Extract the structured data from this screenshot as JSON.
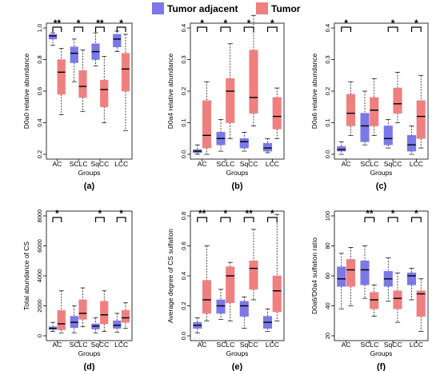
{
  "legend": {
    "items": [
      {
        "label": "Tumor adjacent",
        "color": "#7b78e8"
      },
      {
        "label": "Tumor",
        "color": "#f08080"
      }
    ]
  },
  "colors": {
    "adjacent": "#7b78e8",
    "tumor": "#f08080"
  },
  "chart_data": [
    {
      "type": "box",
      "panel_label": "(a)",
      "ylabel": "D0a0 relative abundance",
      "xlabel": "Groups",
      "categories": [
        "AC",
        "SCLC",
        "SqCC",
        "LCC"
      ],
      "ylim": [
        0.2,
        1.0
      ],
      "yticks": [
        0.2,
        0.4,
        0.6,
        0.8,
        1.0
      ],
      "significance": [
        "**",
        "*",
        "**",
        "*"
      ],
      "series": [
        {
          "group": "Tumor adjacent",
          "boxes": [
            [
              0.89,
              0.93,
              0.95,
              0.96,
              0.97
            ],
            [
              0.66,
              0.78,
              0.84,
              0.88,
              0.93
            ],
            [
              0.76,
              0.8,
              0.85,
              0.9,
              0.97
            ],
            [
              0.85,
              0.88,
              0.93,
              0.96,
              0.98
            ]
          ]
        },
        {
          "group": "Tumor",
          "boxes": [
            [
              0.45,
              0.58,
              0.72,
              0.8,
              0.87
            ],
            [
              0.47,
              0.56,
              0.63,
              0.73,
              0.86
            ],
            [
              0.4,
              0.5,
              0.61,
              0.67,
              0.82
            ],
            [
              0.35,
              0.6,
              0.74,
              0.84,
              0.96
            ]
          ]
        }
      ]
    },
    {
      "type": "box",
      "panel_label": "(b)",
      "ylabel": "D0a4 relative abundance",
      "xlabel": "Groups",
      "categories": [
        "AC",
        "SCLC",
        "SqCC",
        "LCC"
      ],
      "ylim": [
        0.0,
        0.4
      ],
      "yticks": [
        0.0,
        0.1,
        0.2,
        0.3,
        0.4
      ],
      "significance": [
        "*",
        "*",
        "*",
        "*"
      ],
      "series": [
        {
          "group": "Tumor adjacent",
          "boxes": [
            [
              0.0,
              0.005,
              0.01,
              0.015,
              0.03
            ],
            [
              0.01,
              0.03,
              0.05,
              0.07,
              0.11
            ],
            [
              0.01,
              0.02,
              0.04,
              0.05,
              0.07
            ],
            [
              0.005,
              0.01,
              0.02,
              0.035,
              0.05
            ]
          ]
        },
        {
          "group": "Tumor",
          "boxes": [
            [
              0.0,
              0.02,
              0.06,
              0.17,
              0.23
            ],
            [
              0.05,
              0.1,
              0.2,
              0.24,
              0.35
            ],
            [
              0.09,
              0.13,
              0.18,
              0.33,
              0.44
            ],
            [
              0.05,
              0.08,
              0.12,
              0.18,
              0.21
            ]
          ]
        }
      ]
    },
    {
      "type": "box",
      "panel_label": "(c)",
      "ylabel": "D0a6 relative abundance",
      "xlabel": "Groups",
      "categories": [
        "AC",
        "SCLC",
        "SqCC",
        "LCC"
      ],
      "ylim": [
        0.0,
        0.4
      ],
      "yticks": [
        0.0,
        0.1,
        0.2,
        0.3,
        0.4
      ],
      "significance": [
        "*",
        "",
        "*",
        "*"
      ],
      "series": [
        {
          "group": "Tumor adjacent",
          "boxes": [
            [
              0.0,
              0.01,
              0.015,
              0.025,
              0.04
            ],
            [
              0.03,
              0.04,
              0.09,
              0.13,
              0.2
            ],
            [
              0.02,
              0.03,
              0.05,
              0.09,
              0.11
            ],
            [
              0.0,
              0.01,
              0.03,
              0.06,
              0.09
            ]
          ]
        },
        {
          "group": "Tumor",
          "boxes": [
            [
              0.06,
              0.09,
              0.13,
              0.19,
              0.23
            ],
            [
              0.06,
              0.09,
              0.14,
              0.18,
              0.24
            ],
            [
              0.1,
              0.13,
              0.16,
              0.21,
              0.26
            ],
            [
              0.02,
              0.05,
              0.12,
              0.17,
              0.25
            ]
          ]
        }
      ]
    },
    {
      "type": "box",
      "panel_label": "(d)",
      "ylabel": "Total abundance of CS",
      "xlabel": "Groups",
      "categories": [
        "AC",
        "SCLC",
        "SqCC",
        "LCC"
      ],
      "ylim": [
        0,
        8000
      ],
      "yticks": [
        0,
        2000,
        4000,
        6000,
        8000
      ],
      "significance": [
        "*",
        "",
        "*",
        "*"
      ],
      "series": [
        {
          "group": "Tumor adjacent",
          "boxes": [
            [
              300,
              420,
              500,
              600,
              900
            ],
            [
              200,
              550,
              900,
              1300,
              2000
            ],
            [
              200,
              450,
              650,
              800,
              1200
            ],
            [
              250,
              500,
              700,
              1000,
              1500
            ]
          ]
        },
        {
          "group": "Tumor",
          "boxes": [
            [
              200,
              400,
              800,
              1700,
              3000
            ],
            [
              600,
              1100,
              1500,
              2400,
              3200
            ],
            [
              300,
              800,
              1400,
              2300,
              3000
            ],
            [
              500,
              900,
              1200,
              1700,
              2200
            ]
          ]
        }
      ]
    },
    {
      "type": "box",
      "panel_label": "(e)",
      "ylabel": "Average degree of CS sulfation",
      "xlabel": "Groups",
      "categories": [
        "AC",
        "SCLC",
        "SqCC",
        "LCC"
      ],
      "ylim": [
        0.0,
        0.8
      ],
      "yticks": [
        0.0,
        0.2,
        0.4,
        0.6,
        0.8
      ],
      "significance": [
        "**",
        "*",
        "**",
        "*"
      ],
      "series": [
        {
          "group": "Tumor adjacent",
          "boxes": [
            [
              0.02,
              0.05,
              0.07,
              0.09,
              0.12
            ],
            [
              0.11,
              0.15,
              0.2,
              0.24,
              0.31
            ],
            [
              0.05,
              0.13,
              0.2,
              0.23,
              0.26
            ],
            [
              0.03,
              0.05,
              0.09,
              0.13,
              0.18
            ]
          ]
        },
        {
          "group": "Tumor",
          "boxes": [
            [
              0.1,
              0.15,
              0.24,
              0.37,
              0.6
            ],
            [
              0.1,
              0.22,
              0.4,
              0.46,
              0.49
            ],
            [
              0.24,
              0.31,
              0.45,
              0.5,
              0.71
            ],
            [
              0.1,
              0.16,
              0.3,
              0.4,
              0.81
            ]
          ]
        }
      ]
    },
    {
      "type": "box",
      "panel_label": "(f)",
      "ylabel": "D0a6/D0a4 sulfation ratio",
      "xlabel": "Groups",
      "categories": [
        "AC",
        "SCLC",
        "SqCC",
        "LCC"
      ],
      "ylim": [
        20,
        100
      ],
      "yticks": [
        20,
        40,
        60,
        80,
        100
      ],
      "significance": [
        "",
        "**",
        "*",
        "*"
      ],
      "series": [
        {
          "group": "Tumor adjacent",
          "boxes": [
            [
              38,
              53,
              58,
              66,
              75
            ],
            [
              45,
              54,
              64,
              70,
              80
            ],
            [
              43,
              53,
              58,
              63,
              72
            ],
            [
              44,
              54,
              60,
              62,
              65
            ]
          ]
        },
        {
          "group": "Tumor",
          "boxes": [
            [
              40,
              53,
              64,
              71,
              79
            ],
            [
              33,
              38,
              44,
              49,
              54
            ],
            [
              29,
              38,
              45,
              50,
              62
            ],
            [
              23,
              33,
              48,
              50,
              58
            ]
          ]
        }
      ]
    }
  ]
}
